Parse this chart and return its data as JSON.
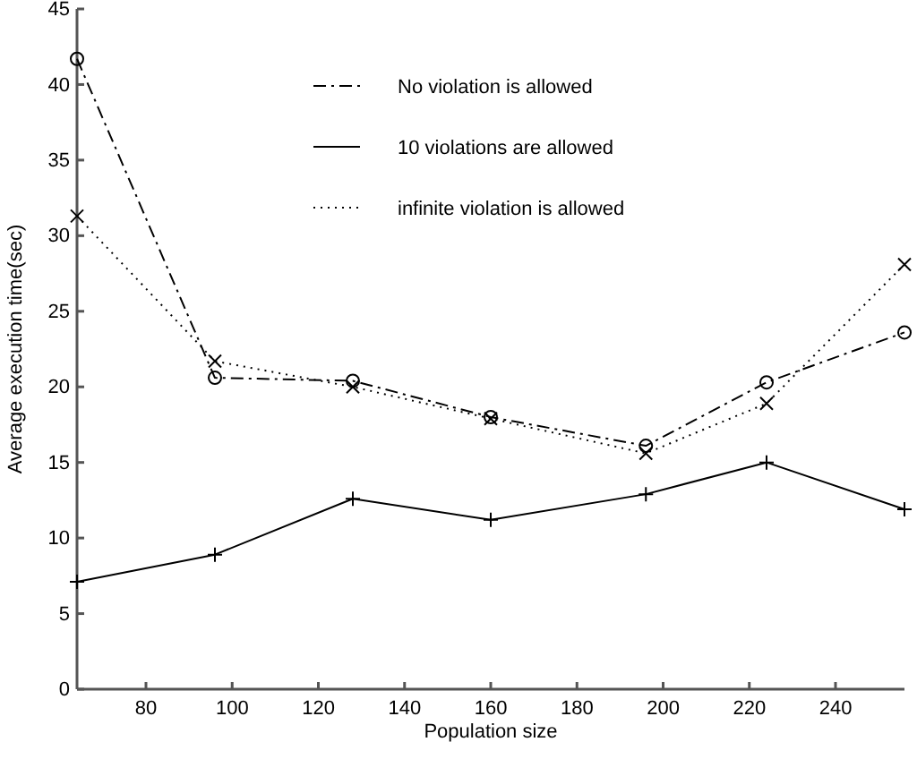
{
  "chart_data": {
    "type": "line",
    "xlabel": "Population size",
    "ylabel": "Average execution time(sec)",
    "x": [
      64,
      96,
      128,
      160,
      196,
      224,
      256
    ],
    "series": [
      {
        "name": "No violation is allowed",
        "color": "#000000",
        "line_style": "dashdot",
        "marker": "circle",
        "values": [
          41.7,
          20.6,
          20.4,
          18.0,
          16.1,
          20.3,
          23.6
        ]
      },
      {
        "name": "10 violations are allowed",
        "color": "#000000",
        "line_style": "solid",
        "marker": "plus",
        "values": [
          7.1,
          8.9,
          12.6,
          11.2,
          12.9,
          15.0,
          11.9
        ]
      },
      {
        "name": "infinite violation is allowed",
        "color": "#000000",
        "line_style": "dotted",
        "marker": "cross",
        "values": [
          31.3,
          21.7,
          20.0,
          17.9,
          15.6,
          18.9,
          28.1
        ]
      }
    ],
    "xlim": [
      64,
      256
    ],
    "xticks": [
      80,
      100,
      120,
      140,
      160,
      180,
      200,
      220,
      240
    ],
    "ylim": [
      0,
      45
    ],
    "yticks": [
      0,
      5,
      10,
      15,
      20,
      25,
      30,
      35,
      40,
      45
    ],
    "grid": false,
    "legend": "top right"
  }
}
